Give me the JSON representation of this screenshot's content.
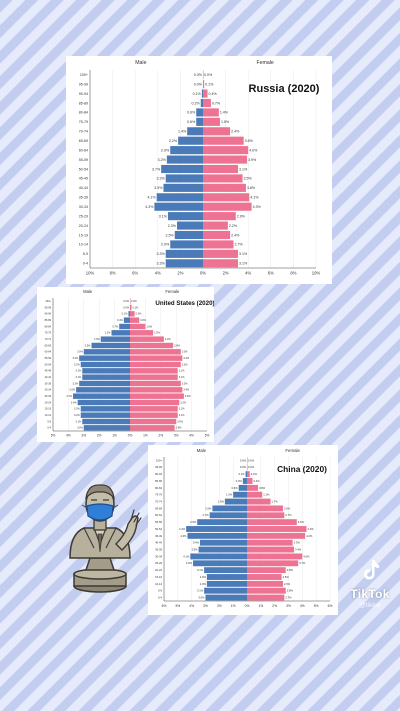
{
  "colors": {
    "male": "#4a7bb8",
    "female": "#ee7292",
    "axis": "#444444",
    "grid": "#e2e2e2"
  },
  "watermark": {
    "name": "TikTok",
    "handle": "@tiktok"
  },
  "chart_data": [
    {
      "id": "russia",
      "type": "bar",
      "title": "Russia (2020)",
      "male_label": "Male",
      "female_label": "Female",
      "xlim": [
        0,
        10
      ],
      "x_ticks": [
        "10%",
        "8%",
        "6%",
        "4%",
        "2%",
        "0%",
        "2%",
        "4%",
        "6%",
        "8%",
        "10%"
      ],
      "categories": [
        "0-4",
        "5-9",
        "10-14",
        "15-19",
        "20-24",
        "25-29",
        "30-34",
        "35-39",
        "40-44",
        "45-49",
        "50-54",
        "55-59",
        "60-64",
        "65-69",
        "70-74",
        "75-79",
        "80-84",
        "85-89",
        "90-94",
        "95-99",
        "100+"
      ],
      "series": [
        {
          "name": "Male",
          "values": [
            3.3,
            3.3,
            2.9,
            2.5,
            2.3,
            3.1,
            4.3,
            4.1,
            3.5,
            3.3,
            3.7,
            3.2,
            2.9,
            2.2,
            1.4,
            0.6,
            0.6,
            0.2,
            0.1,
            0.0,
            0.0
          ]
        },
        {
          "name": "Female",
          "values": [
            3.1,
            3.1,
            2.7,
            2.4,
            2.2,
            2.9,
            4.3,
            4.1,
            3.8,
            3.5,
            3.1,
            3.9,
            4.0,
            3.6,
            2.4,
            1.5,
            1.4,
            0.7,
            0.4,
            0.1,
            0.0
          ]
        }
      ]
    },
    {
      "id": "usa",
      "type": "bar",
      "title": "United States (2020)",
      "male_label": "Male",
      "female_label": "Female",
      "xlim": [
        0,
        5
      ],
      "x_ticks": [
        "5%",
        "4%",
        "3%",
        "2%",
        "1%",
        "0%",
        "1%",
        "2%",
        "3%",
        "4%",
        "5%"
      ],
      "categories": [
        "0-4",
        "5-9",
        "10-14",
        "15-19",
        "20-24",
        "25-29",
        "30-34",
        "35-39",
        "40-44",
        "45-49",
        "50-54",
        "55-59",
        "60-64",
        "65-69",
        "70-74",
        "75-79",
        "80-84",
        "85-89",
        "90-94",
        "95-99",
        "100+"
      ],
      "series": [
        {
          "name": "Male",
          "values": [
            3.0,
            3.1,
            3.2,
            3.2,
            3.4,
            3.7,
            3.5,
            3.3,
            3.1,
            3.1,
            3.2,
            3.3,
            3.0,
            2.5,
            1.9,
            1.2,
            0.7,
            0.4,
            0.1,
            0.0,
            0.0
          ]
        },
        {
          "name": "Female",
          "values": [
            2.9,
            3.0,
            3.1,
            3.1,
            3.2,
            3.5,
            3.4,
            3.3,
            3.1,
            3.1,
            3.3,
            3.4,
            3.3,
            2.8,
            2.2,
            1.5,
            1.0,
            0.6,
            0.3,
            0.1,
            0.0
          ]
        }
      ]
    },
    {
      "id": "china",
      "type": "bar",
      "title": "China (2020)",
      "male_label": "Male",
      "female_label": "Female",
      "xlim": [
        0,
        6
      ],
      "x_ticks": [
        "6%",
        "5%",
        "4%",
        "3%",
        "2%",
        "1%",
        "0%",
        "1%",
        "2%",
        "3%",
        "4%",
        "5%",
        "6%"
      ],
      "categories": [
        "0-4",
        "5-9",
        "10-14",
        "15-19",
        "20-24",
        "25-29",
        "30-34",
        "35-39",
        "40-44",
        "45-49",
        "50-54",
        "55-59",
        "60-64",
        "65-69",
        "70-74",
        "75-79",
        "80-84",
        "85-89",
        "90-94",
        "95-99",
        "100+"
      ],
      "series": [
        {
          "name": "Male",
          "values": [
            3.0,
            3.1,
            2.9,
            2.9,
            3.1,
            3.9,
            4.1,
            3.5,
            3.4,
            4.3,
            4.4,
            3.6,
            2.7,
            2.5,
            1.6,
            1.0,
            0.6,
            0.3,
            0.1,
            0.0,
            0.0
          ]
        },
        {
          "name": "Female",
          "values": [
            2.7,
            2.8,
            2.6,
            2.5,
            2.8,
            3.7,
            4.0,
            3.4,
            3.3,
            4.2,
            4.3,
            3.6,
            2.7,
            2.6,
            1.7,
            1.1,
            0.8,
            0.4,
            0.2,
            0.0,
            0.0
          ]
        }
      ]
    }
  ]
}
